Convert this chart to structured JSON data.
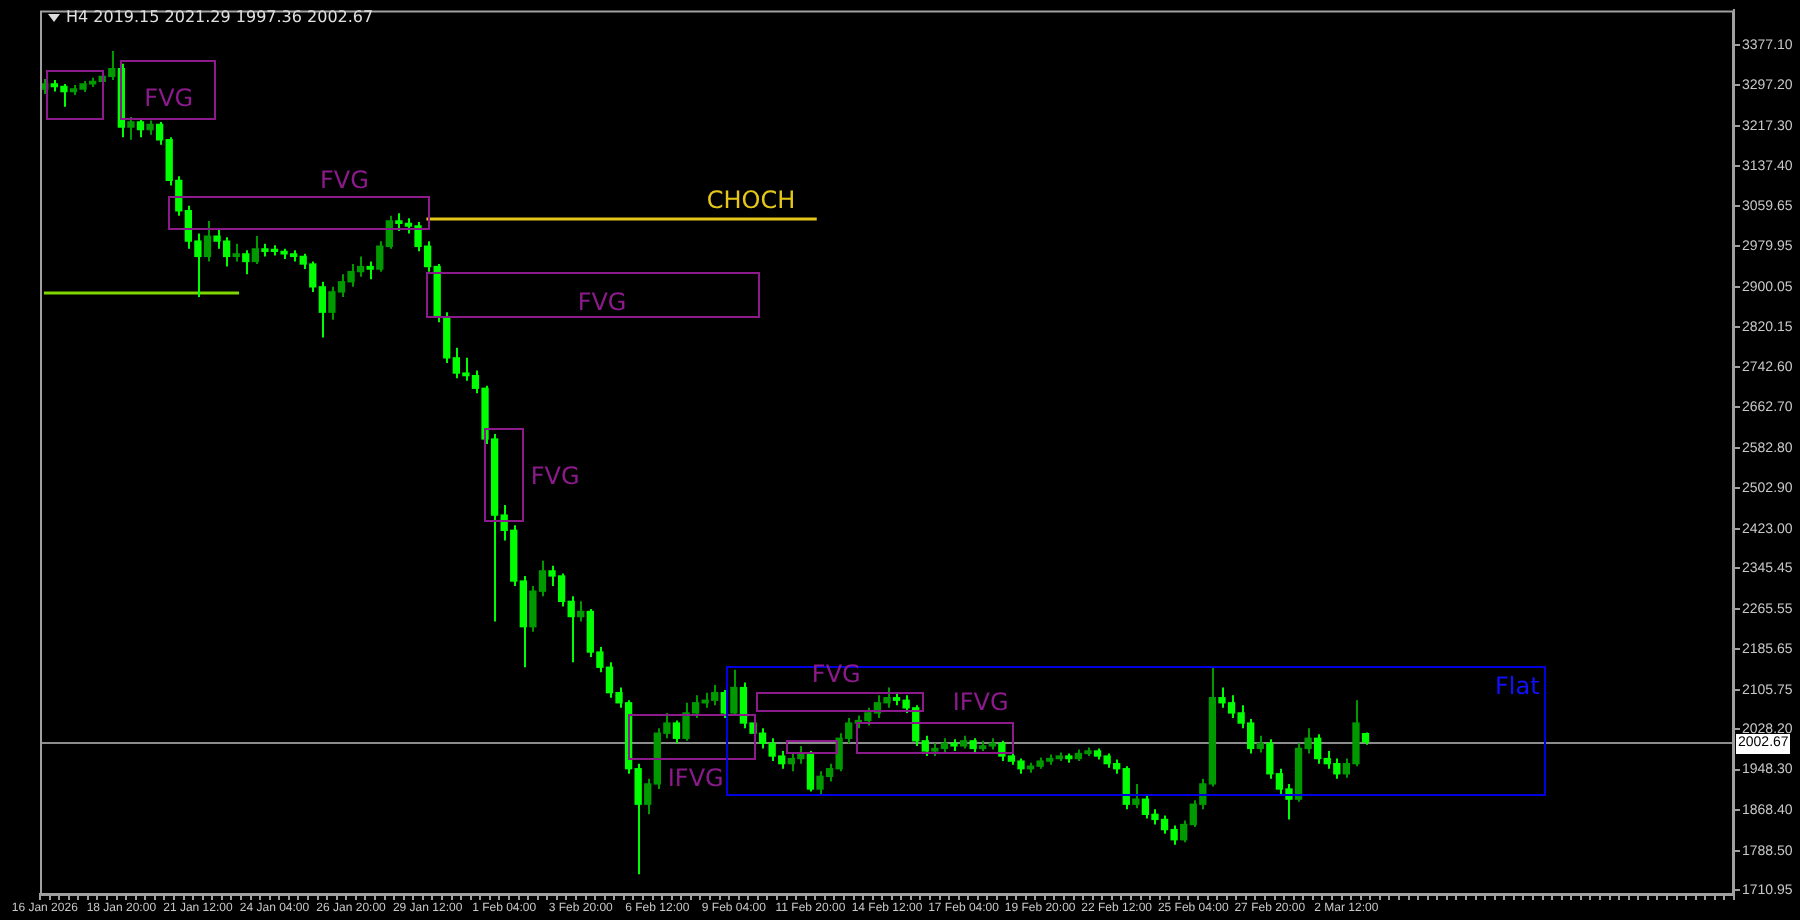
{
  "chart_data": {
    "type": "candlestick",
    "title": "H4  2019.15 2021.29 1997.36 2002.67",
    "categories": [
      "16 Jan 2026",
      null,
      null,
      null,
      null,
      null,
      null,
      null,
      "18 Jan 20:00",
      null,
      null,
      null,
      null,
      null,
      null,
      null,
      "21 Jan 12:00",
      null,
      null,
      null,
      null,
      null,
      null,
      null,
      "24 Jan 04:00",
      null,
      null,
      null,
      null,
      null,
      null,
      null,
      "26 Jan 20:00",
      null,
      null,
      null,
      null,
      null,
      null,
      null,
      "29 Jan 12:00",
      null,
      null,
      null,
      null,
      null,
      null,
      null,
      "1 Feb 04:00",
      null,
      null,
      null,
      null,
      null,
      null,
      null,
      "3 Feb 20:00",
      null,
      null,
      null,
      null,
      null,
      null,
      null,
      "6 Feb 12:00",
      null,
      null,
      null,
      null,
      null,
      null,
      null,
      "9 Feb 04:00",
      null,
      null,
      null,
      null,
      null,
      null,
      null,
      "11 Feb 20:00",
      null,
      null,
      null,
      null,
      null,
      null,
      null,
      "14 Feb 12:00",
      null,
      null,
      null,
      null,
      null,
      null,
      null,
      "17 Feb 04:00",
      null,
      null,
      null,
      null,
      null,
      null,
      null,
      "19 Feb 20:00",
      null,
      null,
      null,
      null,
      null,
      null,
      null,
      "22 Feb 12:00",
      null,
      null,
      null,
      null,
      null,
      null,
      null,
      "25 Feb 04:00",
      null,
      null,
      null,
      null,
      null,
      null,
      null,
      "27 Feb 20:00",
      null,
      null,
      null,
      null,
      null,
      null,
      null,
      "2 Mar 12:00",
      null,
      null,
      null,
      null,
      null,
      null,
      null,
      null,
      null,
      null,
      null,
      null,
      null,
      null,
      null,
      null,
      null,
      null,
      null,
      null,
      null,
      null,
      null,
      null,
      null,
      null,
      null,
      null,
      null,
      null,
      null,
      null,
      null,
      null,
      null,
      null,
      null,
      null,
      null,
      null
    ],
    "colors": [
      "#009a00",
      "#00ff00",
      "#00ff00",
      "#009a00",
      "#009a00",
      "#009a00",
      "#009a00",
      "#009a00",
      "#00ff00",
      "#009a00",
      "#00ff00",
      "#009a00",
      "#00ff00",
      "#00ff00",
      "#00ff00",
      "#00ff00",
      "#00ff00",
      "#009a00",
      "#00ff00",
      "#00ff00",
      "#009a00",
      "#00ff00",
      "#009a00",
      "#00ff00",
      "#00ff00",
      "#00ff00",
      "#00ff00",
      "#00ff00",
      "#00ff00",
      "#00ff00",
      "#009a00",
      "#009a00",
      "#009a00",
      "#009a00",
      "#00ff00",
      "#009a00",
      "#009a00",
      "#00ff00",
      "#00ff00",
      "#00ff00",
      "#00ff00",
      "#00ff00",
      "#00ff00",
      "#00ff00",
      "#00ff00",
      "#00ff00",
      "#00ff00",
      "#00ff00",
      "#00ff00",
      "#00ff00",
      "#00ff00",
      "#009a00",
      "#009a00",
      "#00ff00",
      "#00ff00",
      "#00ff00",
      "#009a00",
      "#00ff00",
      "#00ff00",
      "#00ff00",
      "#00ff00",
      "#00ff00",
      "#00ff00",
      "#009a00",
      "#009a00",
      "#009a00",
      "#00ff00",
      "#009a00",
      "#009a00",
      "#009a00",
      "#009a00",
      "#00ff00",
      "#009a00",
      "#00ff00",
      "#00ff00",
      "#00ff00",
      "#00ff00",
      "#00ff00",
      "#009a00",
      "#009a00",
      "#00ff00",
      "#009a00",
      "#009a00",
      "#009a00",
      "#009a00",
      "#009a00",
      "#009a00",
      "#009a00",
      "#009a00",
      "#00ff00",
      "#00ff00",
      "#00ff00",
      "#00ff00",
      "#009a00",
      "#009a00",
      "#00ff00",
      "#009a00",
      "#00ff00",
      "#009a00",
      "#009a00",
      "#00ff00",
      "#00ff00",
      "#00ff00",
      "#009a00",
      "#009a00",
      "#009a00",
      "#009a00",
      "#00ff00",
      "#009a00",
      "#009a00",
      "#00ff00",
      "#00ff00",
      "#00ff00",
      "#00ff00",
      "#009a00",
      "#00ff00",
      "#00ff00",
      "#00ff00",
      "#00ff00",
      "#009a00",
      "#009a00",
      "#009a00",
      "#009a00",
      "#00ff00",
      "#00ff00",
      "#00ff00",
      "#00ff00",
      "#009a00",
      "#00ff00",
      "#00ff00",
      "#00ff00",
      "#009a00",
      "#009a00",
      "#00ff00",
      "#00ff00",
      "#00ff00",
      "#009a00",
      "#009a00",
      "#00ff00",
      null,
      null,
      null,
      null,
      null,
      null,
      null,
      null,
      null,
      null,
      null,
      null,
      null,
      null,
      null,
      null,
      null,
      null,
      null,
      null,
      null,
      null,
      null,
      null,
      null,
      null,
      null,
      null,
      null,
      null,
      null,
      null,
      null,
      null,
      null,
      null,
      null,
      null
    ],
    "ohlc": [
      [
        3290,
        3310,
        3280,
        3300
      ],
      [
        3300,
        3308,
        3285,
        3295
      ],
      [
        3295,
        3300,
        3255,
        3285
      ],
      [
        3285,
        3298,
        3278,
        3290
      ],
      [
        3290,
        3306,
        3284,
        3300
      ],
      [
        3300,
        3312,
        3294,
        3305
      ],
      [
        3305,
        3322,
        3298,
        3315
      ],
      [
        3315,
        3365,
        3308,
        3330
      ],
      [
        3330,
        3340,
        3195,
        3215
      ],
      [
        3215,
        3235,
        3190,
        3225
      ],
      [
        3225,
        3232,
        3195,
        3210
      ],
      [
        3210,
        3228,
        3200,
        3220
      ],
      [
        3220,
        3225,
        3180,
        3190
      ],
      [
        3190,
        3195,
        3100,
        3110
      ],
      [
        3110,
        3118,
        3040,
        3050
      ],
      [
        3050,
        3060,
        2975,
        2990
      ],
      [
        2990,
        3005,
        2880,
        2960
      ],
      [
        2960,
        3030,
        2950,
        3000
      ],
      [
        3000,
        3012,
        2975,
        2990
      ],
      [
        2990,
        2998,
        2940,
        2960
      ],
      [
        2960,
        2985,
        2950,
        2965
      ],
      [
        2965,
        2972,
        2925,
        2950
      ],
      [
        2950,
        3000,
        2945,
        2975
      ],
      [
        2975,
        2985,
        2960,
        2970
      ],
      [
        2970,
        2982,
        2962,
        2970
      ],
      [
        2970,
        2975,
        2955,
        2965
      ],
      [
        2965,
        2972,
        2950,
        2960
      ],
      [
        2960,
        2965,
        2935,
        2945
      ],
      [
        2945,
        2950,
        2890,
        2900
      ],
      [
        2900,
        2910,
        2800,
        2850
      ],
      [
        2850,
        2900,
        2835,
        2890
      ],
      [
        2890,
        2925,
        2880,
        2910
      ],
      [
        2910,
        2945,
        2900,
        2930
      ],
      [
        2930,
        2960,
        2920,
        2940
      ],
      [
        2940,
        2950,
        2915,
        2935
      ],
      [
        2935,
        2990,
        2930,
        2980
      ],
      [
        2980,
        3040,
        2975,
        3030
      ],
      [
        3030,
        3045,
        3010,
        3025
      ],
      [
        3025,
        3035,
        3005,
        3020
      ],
      [
        3020,
        3028,
        2970,
        2980
      ],
      [
        2980,
        2990,
        2930,
        2940
      ],
      [
        2940,
        2945,
        2830,
        2840
      ],
      [
        2840,
        2850,
        2750,
        2760
      ],
      [
        2760,
        2780,
        2720,
        2730
      ],
      [
        2730,
        2760,
        2715,
        2725
      ],
      [
        2725,
        2735,
        2690,
        2700
      ],
      [
        2700,
        2705,
        2590,
        2600
      ],
      [
        2600,
        2610,
        2240,
        2450
      ],
      [
        2450,
        2470,
        2400,
        2420
      ],
      [
        2420,
        2430,
        2310,
        2320
      ],
      [
        2320,
        2330,
        2150,
        2230
      ],
      [
        2230,
        2310,
        2220,
        2300
      ],
      [
        2300,
        2360,
        2290,
        2340
      ],
      [
        2340,
        2350,
        2310,
        2330
      ],
      [
        2330,
        2335,
        2270,
        2280
      ],
      [
        2280,
        2290,
        2160,
        2250
      ],
      [
        2250,
        2280,
        2240,
        2260
      ],
      [
        2260,
        2265,
        2170,
        2180
      ],
      [
        2180,
        2190,
        2140,
        2150
      ],
      [
        2150,
        2160,
        2090,
        2100
      ],
      [
        2100,
        2110,
        2070,
        2080
      ],
      [
        2080,
        2085,
        1940,
        1950
      ],
      [
        1950,
        1960,
        1742,
        1880
      ],
      [
        1880,
        1930,
        1860,
        1920
      ],
      [
        1920,
        2030,
        1910,
        2020
      ],
      [
        2020,
        2060,
        2010,
        2040
      ],
      [
        2040,
        2045,
        2000,
        2010
      ],
      [
        2010,
        2080,
        2005,
        2060
      ],
      [
        2060,
        2095,
        2050,
        2080
      ],
      [
        2080,
        2100,
        2070,
        2085
      ],
      [
        2085,
        2115,
        2075,
        2100
      ],
      [
        2100,
        2105,
        2050,
        2060
      ],
      [
        2060,
        2145,
        2055,
        2110
      ],
      [
        2110,
        2120,
        2030,
        2040
      ],
      [
        2040,
        2050,
        2010,
        2020
      ],
      [
        2020,
        2030,
        1990,
        2000
      ],
      [
        2000,
        2010,
        1965,
        1975
      ],
      [
        1975,
        1985,
        1950,
        1960
      ],
      [
        1960,
        1980,
        1945,
        1970
      ],
      [
        1970,
        1995,
        1960,
        1980
      ],
      [
        1980,
        1985,
        1905,
        1910
      ],
      [
        1910,
        1945,
        1900,
        1935
      ],
      [
        1935,
        1960,
        1925,
        1950
      ],
      [
        1950,
        2020,
        1945,
        2010
      ],
      [
        2010,
        2050,
        2000,
        2040
      ],
      [
        2040,
        2055,
        2030,
        2045
      ],
      [
        2045,
        2070,
        2035,
        2060
      ],
      [
        2060,
        2095,
        2050,
        2080
      ],
      [
        2080,
        2110,
        2070,
        2090
      ],
      [
        2090,
        2100,
        2075,
        2085
      ],
      [
        2085,
        2095,
        2060,
        2070
      ],
      [
        2070,
        2075,
        1995,
        2005
      ],
      [
        2005,
        2015,
        1975,
        1985
      ],
      [
        1985,
        2000,
        1975,
        1990
      ],
      [
        1990,
        2010,
        1980,
        2000
      ],
      [
        2000,
        2008,
        1985,
        1995
      ],
      [
        1995,
        2015,
        1990,
        2005
      ],
      [
        2005,
        2010,
        1980,
        1990
      ],
      [
        1990,
        2005,
        1985,
        1995
      ],
      [
        1995,
        2010,
        1988,
        2000
      ],
      [
        2000,
        2005,
        1965,
        1975
      ],
      [
        1975,
        1982,
        1958,
        1965
      ],
      [
        1965,
        1970,
        1940,
        1950
      ],
      [
        1950,
        1962,
        1942,
        1955
      ],
      [
        1955,
        1972,
        1950,
        1965
      ],
      [
        1965,
        1978,
        1958,
        1970
      ],
      [
        1970,
        1982,
        1965,
        1975
      ],
      [
        1975,
        1980,
        1962,
        1970
      ],
      [
        1970,
        1988,
        1965,
        1980
      ],
      [
        1980,
        1992,
        1975,
        1985
      ],
      [
        1985,
        1990,
        1968,
        1975
      ],
      [
        1975,
        1980,
        1952,
        1960
      ],
      [
        1960,
        1968,
        1940,
        1950
      ],
      [
        1950,
        1955,
        1870,
        1880
      ],
      [
        1880,
        1920,
        1872,
        1890
      ],
      [
        1890,
        1898,
        1852,
        1860
      ],
      [
        1860,
        1870,
        1840,
        1850
      ],
      [
        1850,
        1858,
        1822,
        1830
      ],
      [
        1830,
        1838,
        1800,
        1810
      ],
      [
        1810,
        1848,
        1805,
        1840
      ],
      [
        1840,
        1888,
        1835,
        1880
      ],
      [
        1880,
        1930,
        1870,
        1920
      ],
      [
        1920,
        2150,
        1915,
        2090
      ],
      [
        2090,
        2110,
        2070,
        2080
      ],
      [
        2080,
        2095,
        2050,
        2060
      ],
      [
        2060,
        2075,
        2030,
        2040
      ],
      [
        2040,
        2048,
        1980,
        1990
      ],
      [
        1990,
        2015,
        1982,
        2000
      ],
      [
        2000,
        2008,
        1930,
        1940
      ],
      [
        1940,
        1950,
        1900,
        1910
      ],
      [
        1910,
        1920,
        1850,
        1890
      ],
      [
        1890,
        2000,
        1885,
        1990
      ],
      [
        1990,
        2030,
        1980,
        2010
      ],
      [
        2010,
        2018,
        1960,
        1970
      ],
      [
        1970,
        1985,
        1950,
        1960
      ],
      [
        1960,
        1970,
        1930,
        1940
      ],
      [
        1940,
        1970,
        1932,
        1960
      ],
      [
        1960,
        2085,
        1955,
        2040
      ],
      [
        2019.15,
        2021.29,
        1997.36,
        2002.67
      ],
      null,
      null,
      null,
      null,
      null,
      null,
      null,
      null,
      null,
      null,
      null,
      null,
      null,
      null,
      null,
      null,
      null,
      null,
      null,
      null,
      null,
      null,
      null,
      null,
      null,
      null,
      null,
      null,
      null,
      null,
      null,
      null,
      null,
      null,
      null,
      null,
      null,
      null
    ],
    "ylim": [
      1703,
      3445
    ],
    "yticks": [
      {
        "value": 1710.95,
        "label": "1710.95"
      },
      {
        "value": 1788.5,
        "label": "1788.50"
      },
      {
        "value": 1868.4,
        "label": "1868.40"
      },
      {
        "value": 1948.3,
        "label": "1948.30"
      },
      {
        "value": 2028.2,
        "label": "2028.20"
      },
      {
        "value": 2105.75,
        "label": "2105.75"
      },
      {
        "value": 2185.65,
        "label": "2185.65"
      },
      {
        "value": 2265.55,
        "label": "2265.55"
      },
      {
        "value": 2345.45,
        "label": "2345.45"
      },
      {
        "value": 2423,
        "label": "2423.00"
      },
      {
        "value": 2502.9,
        "label": "2502.90"
      },
      {
        "value": 2582.8,
        "label": "2582.80"
      },
      {
        "value": 2662.7,
        "label": "2662.70"
      },
      {
        "value": 2742.6,
        "label": "2742.60"
      },
      {
        "value": 2820.15,
        "label": "2820.15"
      },
      {
        "value": 2900.05,
        "label": "2900.05"
      },
      {
        "value": 2979.95,
        "label": "2979.95"
      },
      {
        "value": 3059.65,
        "label": "3059.65"
      },
      {
        "value": 3137.4,
        "label": "3137.40"
      },
      {
        "value": 3217.3,
        "label": "3217.30"
      },
      {
        "value": 3297.2,
        "label": "3297.20"
      },
      {
        "value": 3377.1,
        "label": "3377.10"
      }
    ],
    "ref_lines": [
      {
        "axis": "y",
        "value": 3036,
        "label": "CHOCH",
        "color": "#e6c619"
      },
      {
        "axis": "y",
        "value": 2891,
        "color": "#7fd600"
      },
      {
        "axis": "y",
        "value": 2002.67,
        "label": "2002.67",
        "color": "#8c8c8c"
      }
    ],
    "annotations": [
      "FVG",
      "FVG",
      "FVG",
      "FVG",
      "IFVG",
      "FVG",
      "IFVG",
      "Flat"
    ]
  }
}
